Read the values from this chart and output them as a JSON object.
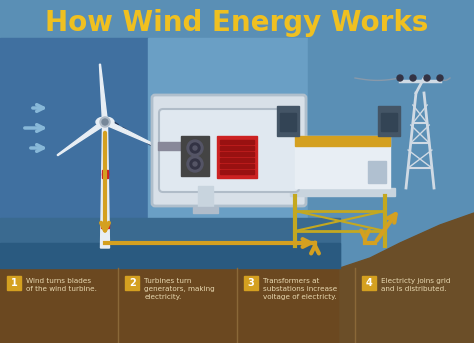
{
  "title": "How Wind Energy Works",
  "title_color": "#F0C020",
  "title_fontsize": 20,
  "bg_main": "#5a8fb5",
  "bg_left_dark": "#4070a0",
  "bg_mid_light": "#6a9fc5",
  "bg_right": "#5a8fb5",
  "ground_color": "#7a5c32",
  "hill_color": "#6b4e28",
  "water_color": "#3a6a90",
  "steps": [
    {
      "num": "1",
      "text": "Wind turns blades\nof the wind turbine."
    },
    {
      "num": "2",
      "text": "Turbines turn\ngenerators, making\nelectricity."
    },
    {
      "num": "3",
      "text": "Transformers at\nsubstations increase\nvoltage of electricty."
    },
    {
      "num": "4",
      "text": "Electricty joins grid\nand is distributed."
    }
  ],
  "step_bar_color": "#6b4820",
  "step_num_bg": "#d4a020",
  "step_text_color": "#e8d8b0",
  "arrow_color": "#d4a020",
  "wind_arrow_color": "#88b8d8",
  "turbine_white": "#e8eef4",
  "turbine_red": "#cc2222",
  "nacelle_bg": "#dde5ee",
  "nacelle_border": "#b0bcc8",
  "gearbox_dark": "#444444",
  "gearbox_mid": "#666666",
  "generator_red": "#cc2222",
  "generator_dark_red": "#991111",
  "shaft_color": "#888899",
  "inset_bg": "#d8e0e8",
  "inset_border": "#b0bfcc",
  "sub_white": "#e8eef4",
  "sub_yellow": "#d4a020",
  "sub_dark": "#445566",
  "sub_dark2": "#333344",
  "sub_frame": "#c4a820",
  "pylon_color": "#d0dae4",
  "wire_color": "#8899aa"
}
